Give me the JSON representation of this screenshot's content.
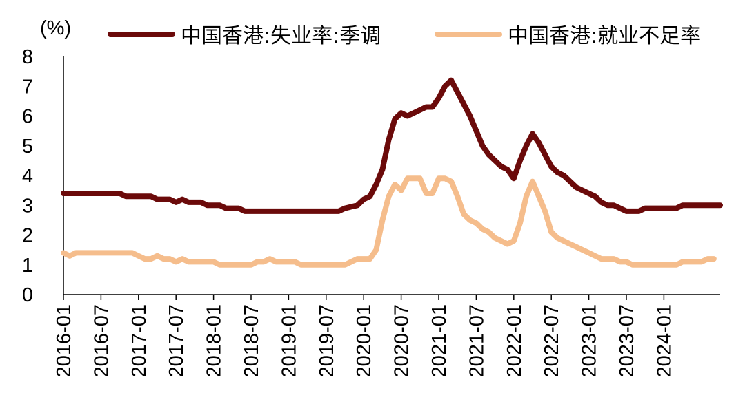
{
  "chart_data": {
    "type": "line",
    "title": "",
    "xlabel": "",
    "ylabel": "(%)",
    "ylim": [
      0,
      8
    ],
    "yticks": [
      0,
      1,
      2,
      3,
      4,
      5,
      6,
      7,
      8
    ],
    "xlim": [
      "2016-01",
      "2024-10"
    ],
    "xtick_labels": [
      "2016-01",
      "2016-07",
      "2017-01",
      "2017-07",
      "2018-01",
      "2018-07",
      "2019-01",
      "2019-07",
      "2020-01",
      "2020-07",
      "2021-01",
      "2021-07",
      "2022-01",
      "2022-07",
      "2023-01",
      "2023-07",
      "2024-01"
    ],
    "grid": false,
    "legend_position": "top",
    "series": [
      {
        "name": "中国香港:失业率:季调",
        "color": "#6b0a0a",
        "points": [
          [
            "2016-01",
            3.4
          ],
          [
            "2016-06",
            3.4
          ],
          [
            "2016-09",
            3.4
          ],
          [
            "2016-10",
            3.4
          ],
          [
            "2016-11",
            3.3
          ],
          [
            "2017-02",
            3.3
          ],
          [
            "2017-03",
            3.3
          ],
          [
            "2017-04",
            3.2
          ],
          [
            "2017-06",
            3.2
          ],
          [
            "2017-07",
            3.1
          ],
          [
            "2017-08",
            3.2
          ],
          [
            "2017-09",
            3.1
          ],
          [
            "2017-11",
            3.1
          ],
          [
            "2017-12",
            3.0
          ],
          [
            "2018-02",
            3.0
          ],
          [
            "2018-03",
            2.9
          ],
          [
            "2018-05",
            2.9
          ],
          [
            "2018-06",
            2.8
          ],
          [
            "2019-09",
            2.8
          ],
          [
            "2019-10",
            2.9
          ],
          [
            "2019-12",
            3.0
          ],
          [
            "2020-01",
            3.2
          ],
          [
            "2020-02",
            3.3
          ],
          [
            "2020-03",
            3.7
          ],
          [
            "2020-04",
            4.2
          ],
          [
            "2020-05",
            5.2
          ],
          [
            "2020-06",
            5.9
          ],
          [
            "2020-07",
            6.1
          ],
          [
            "2020-08",
            6.0
          ],
          [
            "2020-09",
            6.1
          ],
          [
            "2020-10",
            6.2
          ],
          [
            "2020-11",
            6.3
          ],
          [
            "2020-12",
            6.3
          ],
          [
            "2021-01",
            6.6
          ],
          [
            "2021-02",
            7.0
          ],
          [
            "2021-03",
            7.2
          ],
          [
            "2021-04",
            6.8
          ],
          [
            "2021-05",
            6.4
          ],
          [
            "2021-06",
            6.0
          ],
          [
            "2021-07",
            5.5
          ],
          [
            "2021-08",
            5.0
          ],
          [
            "2021-09",
            4.7
          ],
          [
            "2021-10",
            4.5
          ],
          [
            "2021-11",
            4.3
          ],
          [
            "2021-12",
            4.2
          ],
          [
            "2022-01",
            3.9
          ],
          [
            "2022-02",
            4.5
          ],
          [
            "2022-03",
            5.0
          ],
          [
            "2022-04",
            5.4
          ],
          [
            "2022-05",
            5.1
          ],
          [
            "2022-06",
            4.7
          ],
          [
            "2022-07",
            4.3
          ],
          [
            "2022-08",
            4.1
          ],
          [
            "2022-09",
            4.0
          ],
          [
            "2022-10",
            3.8
          ],
          [
            "2022-11",
            3.6
          ],
          [
            "2022-12",
            3.5
          ],
          [
            "2023-01",
            3.4
          ],
          [
            "2023-02",
            3.3
          ],
          [
            "2023-03",
            3.1
          ],
          [
            "2023-04",
            3.0
          ],
          [
            "2023-05",
            3.0
          ],
          [
            "2023-06",
            2.9
          ],
          [
            "2023-07",
            2.8
          ],
          [
            "2023-09",
            2.8
          ],
          [
            "2023-10",
            2.9
          ],
          [
            "2024-03",
            2.9
          ],
          [
            "2024-04",
            3.0
          ],
          [
            "2024-10",
            3.0
          ]
        ]
      },
      {
        "name": "中国香港:就业不足率",
        "color": "#f5bd8c",
        "points": [
          [
            "2016-01",
            1.4
          ],
          [
            "2016-02",
            1.3
          ],
          [
            "2016-03",
            1.4
          ],
          [
            "2016-12",
            1.4
          ],
          [
            "2017-01",
            1.3
          ],
          [
            "2017-02",
            1.2
          ],
          [
            "2017-03",
            1.2
          ],
          [
            "2017-04",
            1.3
          ],
          [
            "2017-05",
            1.2
          ],
          [
            "2017-06",
            1.2
          ],
          [
            "2017-07",
            1.1
          ],
          [
            "2017-08",
            1.2
          ],
          [
            "2017-09",
            1.1
          ],
          [
            "2018-01",
            1.1
          ],
          [
            "2018-02",
            1.0
          ],
          [
            "2018-07",
            1.0
          ],
          [
            "2018-08",
            1.1
          ],
          [
            "2018-09",
            1.1
          ],
          [
            "2018-10",
            1.2
          ],
          [
            "2018-11",
            1.1
          ],
          [
            "2019-02",
            1.1
          ],
          [
            "2019-03",
            1.0
          ],
          [
            "2019-10",
            1.0
          ],
          [
            "2019-11",
            1.1
          ],
          [
            "2019-12",
            1.2
          ],
          [
            "2020-01",
            1.2
          ],
          [
            "2020-02",
            1.2
          ],
          [
            "2020-03",
            1.5
          ],
          [
            "2020-04",
            2.5
          ],
          [
            "2020-05",
            3.3
          ],
          [
            "2020-06",
            3.7
          ],
          [
            "2020-07",
            3.5
          ],
          [
            "2020-08",
            3.9
          ],
          [
            "2020-09",
            3.9
          ],
          [
            "2020-10",
            3.9
          ],
          [
            "2020-11",
            3.4
          ],
          [
            "2020-12",
            3.4
          ],
          [
            "2021-01",
            3.9
          ],
          [
            "2021-02",
            3.9
          ],
          [
            "2021-03",
            3.8
          ],
          [
            "2021-04",
            3.3
          ],
          [
            "2021-05",
            2.7
          ],
          [
            "2021-06",
            2.5
          ],
          [
            "2021-07",
            2.4
          ],
          [
            "2021-08",
            2.2
          ],
          [
            "2021-09",
            2.1
          ],
          [
            "2021-10",
            1.9
          ],
          [
            "2021-11",
            1.8
          ],
          [
            "2021-12",
            1.7
          ],
          [
            "2022-01",
            1.8
          ],
          [
            "2022-02",
            2.4
          ],
          [
            "2022-03",
            3.3
          ],
          [
            "2022-04",
            3.8
          ],
          [
            "2022-05",
            3.3
          ],
          [
            "2022-06",
            2.8
          ],
          [
            "2022-07",
            2.1
          ],
          [
            "2022-08",
            1.9
          ],
          [
            "2022-09",
            1.8
          ],
          [
            "2022-10",
            1.7
          ],
          [
            "2022-11",
            1.6
          ],
          [
            "2022-12",
            1.5
          ],
          [
            "2023-01",
            1.4
          ],
          [
            "2023-02",
            1.3
          ],
          [
            "2023-03",
            1.2
          ],
          [
            "2023-04",
            1.2
          ],
          [
            "2023-05",
            1.2
          ],
          [
            "2023-06",
            1.1
          ],
          [
            "2023-07",
            1.1
          ],
          [
            "2023-08",
            1.0
          ],
          [
            "2024-01",
            1.0
          ],
          [
            "2024-02",
            1.0
          ],
          [
            "2024-03",
            1.0
          ],
          [
            "2024-04",
            1.1
          ],
          [
            "2024-07",
            1.1
          ],
          [
            "2024-08",
            1.2
          ],
          [
            "2024-09",
            1.2
          ]
        ]
      }
    ]
  }
}
